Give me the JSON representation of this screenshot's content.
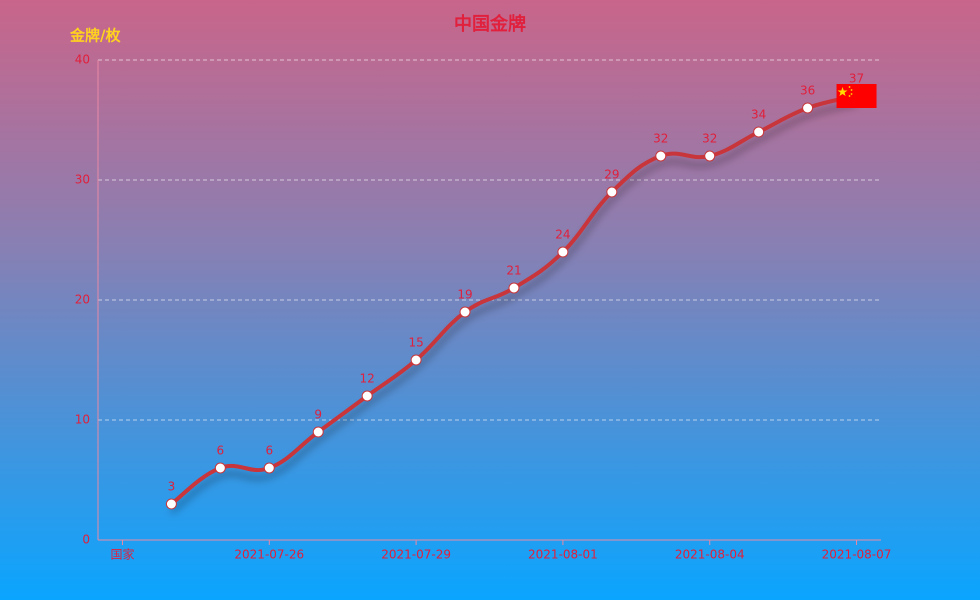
{
  "chart_data": {
    "type": "line",
    "title": "中国金牌",
    "y_axis_label": "金牌/枚",
    "categories": [
      "国家",
      null,
      null,
      "2021-07-26",
      null,
      null,
      "2021-07-29",
      null,
      null,
      "2021-08-01",
      null,
      null,
      "2021-08-04",
      null,
      null,
      "2021-08-07"
    ],
    "series": [
      {
        "name": "中国",
        "color": "#c8363a",
        "values": [
          null,
          3,
          6,
          6,
          9,
          12,
          15,
          19,
          21,
          24,
          29,
          32,
          32,
          34,
          36,
          37
        ]
      }
    ],
    "ylim": [
      0,
      40
    ],
    "yticks": [
      0,
      10,
      20,
      30,
      40
    ],
    "grid": true,
    "smooth": true
  }
}
